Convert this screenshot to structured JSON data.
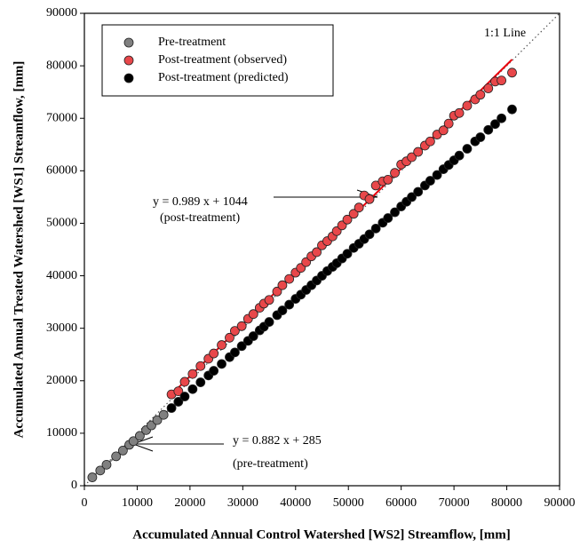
{
  "chart_data": {
    "type": "scatter",
    "xlabel": "Accumulated Annual Control Watershed [WS2] Streamflow, [mm]",
    "ylabel": "Accumulated Annual Treated Watershed [WS1] Streamflow, [mm]",
    "xlim": [
      0,
      90000
    ],
    "ylim": [
      0,
      90000
    ],
    "xticks": [
      0,
      10000,
      20000,
      30000,
      40000,
      50000,
      60000,
      70000,
      80000,
      90000
    ],
    "yticks": [
      0,
      10000,
      20000,
      30000,
      40000,
      50000,
      60000,
      70000,
      80000,
      90000
    ],
    "legend": "upper left",
    "series": [
      {
        "name": "Pre-treatment",
        "color": "#808080",
        "x": [
          1500,
          3000,
          4200,
          6000,
          7300,
          8500,
          9300,
          10500,
          11700,
          12700,
          13800,
          15000
        ],
        "values": [
          1600,
          2900,
          4000,
          5600,
          6700,
          7800,
          8500,
          9500,
          10600,
          11500,
          12500,
          13500
        ]
      },
      {
        "name": "Post-treatment (observed)",
        "color": "#e8474a",
        "x": [
          16500,
          17800,
          19000,
          20500,
          22000,
          23500,
          24500,
          26000,
          27500,
          28500,
          29800,
          31000,
          32000,
          33200,
          34000,
          35000,
          36500,
          37500,
          38800,
          40000,
          41000,
          42000,
          43000,
          44000,
          45000,
          46000,
          47000,
          47800,
          48800,
          49800,
          51000,
          52000,
          53000,
          54000,
          55200,
          56500,
          57500,
          58800,
          60000,
          61000,
          62000,
          63200,
          64500,
          65500,
          66800,
          68000,
          69000,
          70000,
          71000,
          72500,
          74000,
          75000,
          76500,
          77800,
          79000,
          81000
        ],
        "values": [
          17400,
          18000,
          19800,
          21300,
          22800,
          24200,
          25200,
          26800,
          28200,
          29500,
          30400,
          31800,
          32700,
          33900,
          34700,
          35400,
          37000,
          38200,
          39400,
          40600,
          41500,
          42600,
          43700,
          44500,
          45800,
          46600,
          47500,
          48500,
          49600,
          50700,
          51800,
          53000,
          55300,
          54600,
          57200,
          58000,
          58300,
          59600,
          61200,
          61800,
          62600,
          63600,
          64800,
          65600,
          66900,
          67700,
          69000,
          70500,
          71000,
          72400,
          73600,
          74500,
          75700,
          77000,
          77200,
          78700
        ]
      },
      {
        "name": "Post-treatment (predicted)",
        "color": "#000000",
        "x": [
          16500,
          17800,
          19000,
          20500,
          22000,
          23500,
          24500,
          26000,
          27500,
          28500,
          29800,
          31000,
          32000,
          33200,
          34000,
          35000,
          36500,
          37500,
          38800,
          40000,
          41000,
          42000,
          43000,
          44000,
          45000,
          46000,
          47000,
          47800,
          48800,
          49800,
          51000,
          52000,
          53000,
          54000,
          55200,
          56500,
          57500,
          58800,
          60000,
          61000,
          62000,
          63200,
          64500,
          65500,
          66800,
          68000,
          69000,
          70000,
          71000,
          72500,
          74000,
          75000,
          76500,
          77800,
          79000,
          81000
        ],
        "values": [
          14800,
          16000,
          17000,
          18400,
          19700,
          21000,
          21900,
          23200,
          24500,
          25400,
          26600,
          27600,
          28500,
          29600,
          30300,
          31200,
          32500,
          33400,
          34500,
          35600,
          36400,
          37300,
          38200,
          39100,
          40000,
          40900,
          41700,
          42400,
          43300,
          44200,
          45300,
          46100,
          47000,
          47900,
          49000,
          50100,
          51000,
          52100,
          53200,
          54100,
          55000,
          56000,
          57200,
          58100,
          59200,
          60300,
          61100,
          62000,
          62900,
          64200,
          65600,
          66400,
          67800,
          68900,
          70000,
          71700
        ]
      }
    ],
    "fit_lines": [
      {
        "color": "#e8000b",
        "x": [
          16000,
          81000
        ],
        "values": [
          16900,
          81200
        ]
      },
      {
        "color": "#808080",
        "x": [
          1000,
          16000
        ],
        "values": [
          1200,
          14400
        ]
      }
    ],
    "reference_line": {
      "label": "1:1 Line",
      "x": [
        0,
        90000
      ],
      "values": [
        0,
        90000
      ]
    },
    "annotations": [
      "y = 0.989 x + 1044",
      "(post-treatment)",
      "y = 0.882 x + 285",
      "(pre-treatment)"
    ]
  }
}
